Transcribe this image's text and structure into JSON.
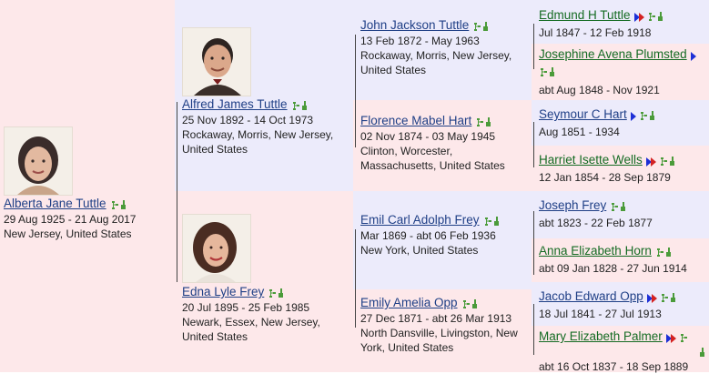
{
  "root": {
    "name": "Alberta Jane Tuttle",
    "dates": "29 Aug 1925 - 21 Aug 2017",
    "place": "New Jersey, United States"
  },
  "parents": [
    {
      "name": "Alfred James Tuttle",
      "dates": "25 Nov 1892 - 14 Oct 1973",
      "place1": "Rockaway, Morris, New Jersey,",
      "place2": "United States"
    },
    {
      "name": "Edna Lyle Frey",
      "dates": "20 Jul 1895 - 25 Feb 1985",
      "place1": "Newark, Essex, New Jersey,",
      "place2": "United States"
    }
  ],
  "grandparents": [
    {
      "name": "John Jackson Tuttle",
      "dates": "13 Feb 1872 - May 1963",
      "place1": "Rockaway, Morris, New Jersey,",
      "place2": "United States"
    },
    {
      "name": "Florence Mabel Hart",
      "dates": "02 Nov 1874 - 03 May 1945",
      "place1": "Clinton, Worcester,",
      "place2": "Massachusetts, United States"
    },
    {
      "name": "Emil Carl Adolph Frey",
      "dates": "Mar 1869 - abt 06 Feb 1936",
      "place1": "New York, United States",
      "place2": ""
    },
    {
      "name": "Emily Amelia Opp",
      "dates": "27 Dec 1871 - abt 26 Mar 1913",
      "place1": "North Dansville, Livingston, New",
      "place2": "York, United States"
    }
  ],
  "great_grandparents": [
    {
      "name": "Edmund H Tuttle",
      "dates": "Jul 1847 - 12 Feb 1918"
    },
    {
      "name": "Josephine Avena Plumsted",
      "dates": "abt Aug 1848 - Nov 1921"
    },
    {
      "name": "Seymour C Hart",
      "dates": "Aug 1851 - 1934"
    },
    {
      "name": "Harriet Isette Wells",
      "dates": "12 Jan 1854 - 28 Sep 1879"
    },
    {
      "name": "Joseph Frey",
      "dates": "abt 1823 - 22 Feb 1877"
    },
    {
      "name": "Anna Elizabeth Horn",
      "dates": "abt 09 Jan 1828 - 27 Jun 1914"
    },
    {
      "name": "Jacob Edward Opp",
      "dates": "18 Jul 1841 - 27 Jul 1913"
    },
    {
      "name": "Mary Elizabeth Palmer",
      "dates": "abt 16 Oct 1837 - 18 Sep 1889"
    }
  ],
  "colors": {
    "male_bg": "#ecebfb",
    "female_bg": "#fde8ea",
    "link_blue": "#1f3f86",
    "link_green": "#156b23"
  }
}
